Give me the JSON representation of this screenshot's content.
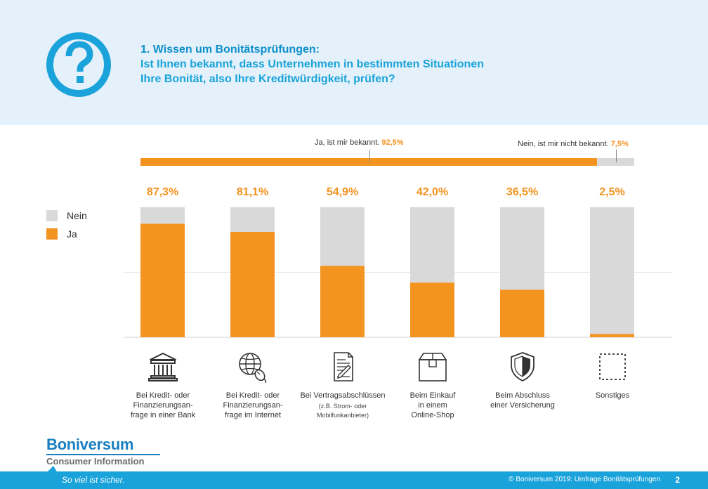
{
  "header": {
    "title_line1": "1. Wissen um Bonitätsprüfungen:",
    "title_line2": "Ist Ihnen bekannt, dass Unternehmen in bestimmten Situationen",
    "title_line3": "Ihre Bonität, also Ihre Kreditwürdigkeit, prüfen?",
    "icon": "question-mark-icon"
  },
  "total": {
    "ja_label": "Ja, ist mir bekannt.",
    "ja_value": "92,5%",
    "ja_share": 92.5,
    "nein_label": "Nein, ist mir nicht bekannt.",
    "nein_value": "7,5%"
  },
  "legend": {
    "nein": "Nein",
    "ja": "Ja"
  },
  "chart_data": {
    "type": "bar",
    "stacked": true,
    "ylim": [
      0,
      100
    ],
    "grid": "single horizontal gridline at 50",
    "categories": [
      "Bei Kredit- oder Finanzierungsanfrage in einer Bank",
      "Bei Kredit- oder Finanzierungsanfrage im Internet",
      "Bei Vertragsabschlüssen (z.B. Strom- oder Mobilfunkanbieter)",
      "Beim Einkauf in einem Online-Shop",
      "Beim Abschluss einer Versicherung",
      "Sonstiges"
    ],
    "value_labels": [
      "87,3%",
      "81,1%",
      "54,9%",
      "42,0%",
      "36,5%",
      "2,5%"
    ],
    "series": [
      {
        "name": "Ja",
        "color": "#f39320",
        "values": [
          87.3,
          81.1,
          54.9,
          42.0,
          36.5,
          2.5
        ]
      },
      {
        "name": "Nein",
        "color": "#d9d9d9",
        "values": [
          12.7,
          18.9,
          45.1,
          58.0,
          63.5,
          97.5
        ]
      }
    ]
  },
  "categories": [
    {
      "icon": "bank-icon",
      "label": [
        "Bei Kredit- oder",
        "Finanzierungsan-",
        "frage in einer Bank"
      ],
      "sub": ""
    },
    {
      "icon": "globe-mouse-icon",
      "label": [
        "Bei Kredit- oder",
        "Finanzierungsan-",
        "frage im Internet"
      ],
      "sub": ""
    },
    {
      "icon": "contract-icon",
      "label": [
        "Bei Vertragsabschlüssen"
      ],
      "sub": [
        "(z.B. Strom- oder",
        "Mobilfunkanbieter)"
      ]
    },
    {
      "icon": "package-icon",
      "label": [
        "Beim Einkauf",
        "in einem",
        "Online-Shop"
      ],
      "sub": ""
    },
    {
      "icon": "shield-icon",
      "label": [
        "Beim Abschluss",
        "einer Versicherung"
      ],
      "sub": ""
    },
    {
      "icon": "dashed-square-icon",
      "label": [
        "Sonstiges"
      ],
      "sub": ""
    }
  ],
  "logo": {
    "name": "Boniversum",
    "sub": "Consumer Information"
  },
  "footer": {
    "slogan": "So viel ist sicher.",
    "copyright": "© Boniversum 2019: Umfrage Bonitätsprüfungen",
    "page": "2"
  },
  "colors": {
    "ja": "#f39320",
    "nein": "#d9d9d9",
    "accent": "#1aa3da",
    "header_bg": "#e4f1fa"
  }
}
